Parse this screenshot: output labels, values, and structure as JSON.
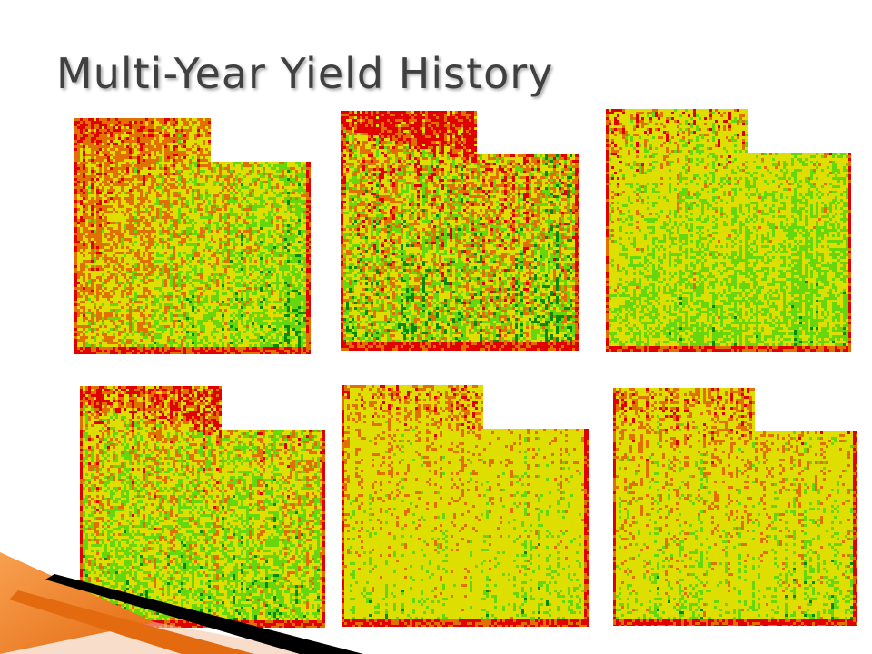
{
  "slide": {
    "title": "Multi-Year Yield History"
  },
  "palette": {
    "high": "#0a8a0a",
    "above_average": "#66d60e",
    "average": "#dede00",
    "below_average": "#e07000",
    "low": "#e00000"
  },
  "accent": {
    "orange": "#f07a1a",
    "black": "#000000"
  },
  "maps": [
    {
      "panel": "top-left",
      "tone": "orange-green"
    },
    {
      "panel": "top-middle",
      "tone": "red-green-dark"
    },
    {
      "panel": "top-right",
      "tone": "yellow-green"
    },
    {
      "panel": "bottom-left",
      "tone": "mixed-red-green"
    },
    {
      "panel": "bottom-middle",
      "tone": "yellow-orange"
    },
    {
      "panel": "bottom-right",
      "tone": "yellow-orange-light"
    }
  ]
}
